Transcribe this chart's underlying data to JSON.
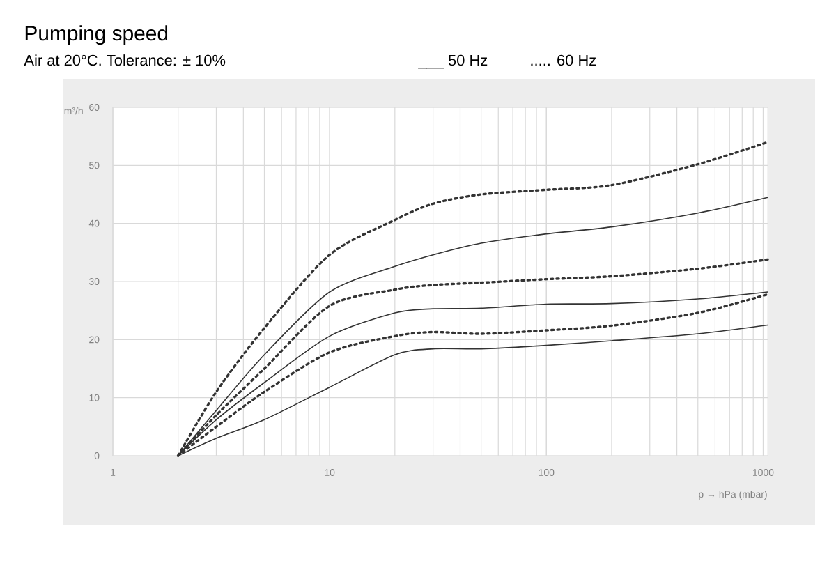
{
  "chart_data": {
    "type": "line",
    "title": "Pumping speed",
    "subtitle": "Air at 20°C. Tolerance: ± 10%",
    "annotations": [
      "___ 50 Hz",
      "..... 60 Hz"
    ],
    "xlabel": "p → hPa (mbar)",
    "ylabel": "m³/h",
    "log": "x",
    "grid": true,
    "marker": "none",
    "xlim": [
      1,
      1050
    ],
    "ylim": [
      0,
      60
    ],
    "xticks": [
      1,
      10,
      100,
      1000
    ],
    "yticks": [
      0,
      10,
      20,
      30,
      40,
      50,
      60
    ],
    "x": [
      2,
      3,
      5,
      10,
      20,
      30,
      50,
      100,
      200,
      500,
      1050
    ],
    "series": [
      {
        "color": "#333333",
        "line_style": "dotted",
        "values": [
          0,
          11,
          22,
          34.6,
          40.6,
          43.4,
          45,
          45.8,
          46.6,
          50.2,
          54
        ]
      },
      {
        "color": "#333333",
        "line_style": "solid",
        "values": [
          0,
          7.8,
          17.4,
          28.2,
          32.6,
          34.6,
          36.6,
          38.2,
          39.4,
          41.8,
          44.5
        ]
      },
      {
        "color": "#333333",
        "line_style": "dotted",
        "values": [
          0,
          7,
          15,
          25.8,
          28.6,
          29.4,
          29.8,
          30.4,
          30.9,
          32.2,
          33.8
        ]
      },
      {
        "color": "#333333",
        "line_style": "solid",
        "values": [
          0,
          6.2,
          12.6,
          20.6,
          24.6,
          25.3,
          25.4,
          26.1,
          26.2,
          27,
          28.2
        ]
      },
      {
        "color": "#333333",
        "line_style": "dotted",
        "values": [
          0,
          5,
          11,
          17.8,
          20.6,
          21.3,
          21,
          21.6,
          22.4,
          24.6,
          27.8
        ]
      },
      {
        "color": "#333333",
        "line_style": "solid",
        "values": [
          0,
          3,
          6.2,
          11.8,
          17.4,
          18.4,
          18.4,
          19,
          19.8,
          21,
          22.5
        ]
      }
    ]
  }
}
